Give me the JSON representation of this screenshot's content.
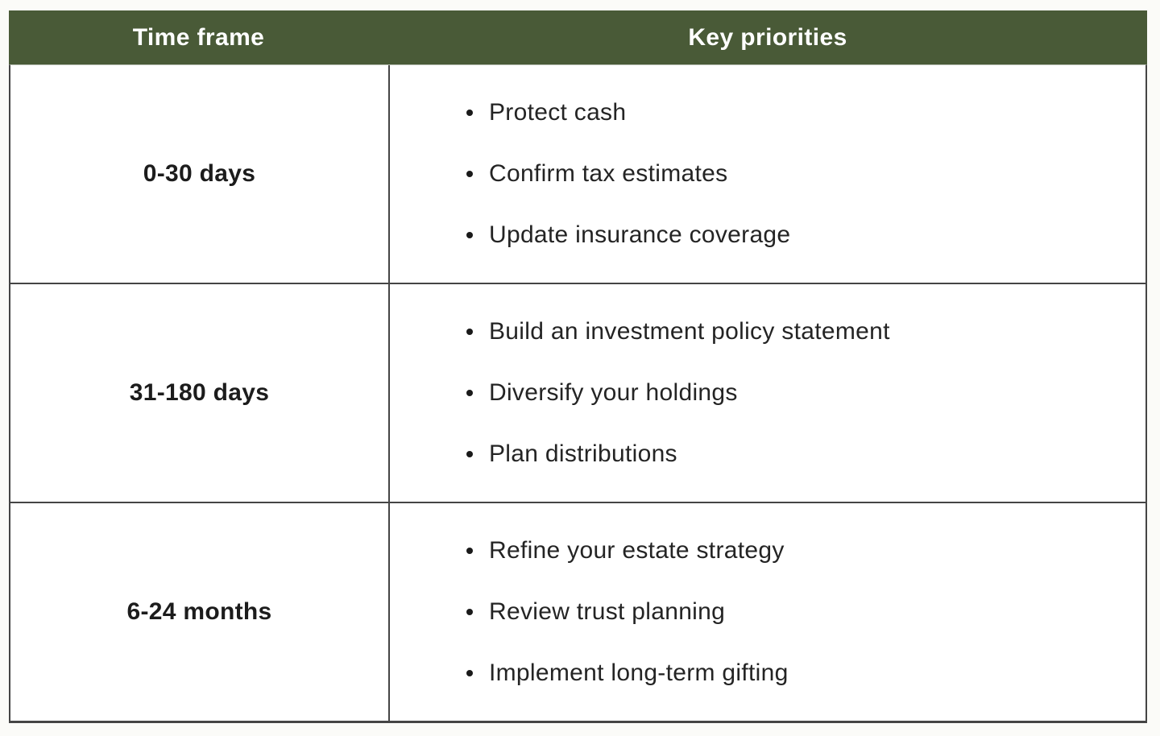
{
  "table": {
    "columns": [
      "Time frame",
      "Key priorities"
    ],
    "rows": [
      {
        "time_frame": "0-30 days",
        "priorities": [
          "Protect cash",
          "Confirm tax estimates",
          "Update insurance coverage"
        ]
      },
      {
        "time_frame": "31-180 days",
        "priorities": [
          "Build an investment policy statement",
          "Diversify your holdings",
          "Plan distributions"
        ]
      },
      {
        "time_frame": "6-24 months",
        "priorities": [
          "Refine your estate strategy",
          "Review trust planning",
          "Implement long-term gifting"
        ]
      }
    ]
  },
  "colors": {
    "header_bg": "#495A37",
    "header_text": "#FFFFFF",
    "border_dark": "#454545",
    "border_light": "#B7BDB2",
    "label_text": "#1C1C1C",
    "bullet_text": "#242424",
    "page_bg": "#FBFBF8",
    "cell_bg": "#FFFFFF"
  }
}
